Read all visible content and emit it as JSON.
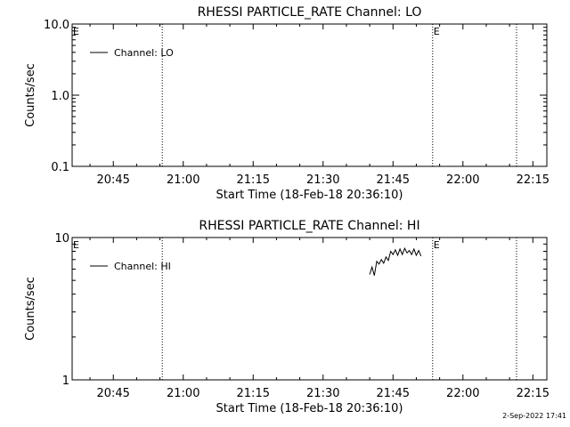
{
  "footer": {
    "timestamp": "2-Sep-2022 17:41"
  },
  "chart_data": [
    {
      "type": "line",
      "title": "RHESSI PARTICLE_RATE Channel: LO",
      "xlabel": "Start Time (18-Feb-18 20:36:10)",
      "ylabel": "Counts/sec",
      "yscale": "log",
      "ylim": [
        0.1,
        10.0
      ],
      "yticks": [
        {
          "v": 0.1,
          "label": "0.1"
        },
        {
          "v": 1.0,
          "label": "1.0"
        },
        {
          "v": 10.0,
          "label": "10.0"
        }
      ],
      "xlim": [
        "20:36:10",
        "22:18:00"
      ],
      "xticks": [
        "20:45",
        "21:00",
        "21:15",
        "21:30",
        "21:45",
        "22:00",
        "22:15"
      ],
      "vlines": [
        "20:55:30",
        "21:53:30",
        "22:11:30"
      ],
      "markers": [
        {
          "t": "20:36:10",
          "label": "E"
        },
        {
          "t": "21:53:30",
          "label": "E"
        }
      ],
      "legend_position": "top-left",
      "grid": false,
      "series": [
        {
          "name": "Channel: LO",
          "x": [],
          "values": []
        }
      ]
    },
    {
      "type": "line",
      "title": "RHESSI PARTICLE_RATE Channel: HI",
      "xlabel": "Start Time (18-Feb-18 20:36:10)",
      "ylabel": "Counts/sec",
      "yscale": "log",
      "ylim": [
        1,
        10
      ],
      "yticks": [
        {
          "v": 1,
          "label": "1"
        },
        {
          "v": 10,
          "label": "10"
        }
      ],
      "xlim": [
        "20:36:10",
        "22:18:00"
      ],
      "xticks": [
        "20:45",
        "21:00",
        "21:15",
        "21:30",
        "21:45",
        "22:00",
        "22:15"
      ],
      "vlines": [
        "20:55:30",
        "21:53:30",
        "22:11:30"
      ],
      "markers": [
        {
          "t": "20:36:10",
          "label": "E"
        },
        {
          "t": "21:53:30",
          "label": "E"
        }
      ],
      "legend_position": "top-left",
      "grid": false,
      "series": [
        {
          "name": "Channel: HI",
          "x": [
            "21:40:00",
            "21:40:30",
            "21:41:00",
            "21:41:30",
            "21:42:00",
            "21:42:30",
            "21:43:00",
            "21:43:30",
            "21:44:00",
            "21:44:30",
            "21:45:00",
            "21:45:30",
            "21:46:00",
            "21:46:30",
            "21:47:00",
            "21:47:30",
            "21:48:00",
            "21:48:30",
            "21:49:00",
            "21:49:30",
            "21:50:00",
            "21:50:30",
            "21:51:00"
          ],
          "values": [
            5.5,
            6.2,
            5.4,
            6.8,
            6.5,
            7.0,
            6.6,
            7.3,
            6.9,
            8.0,
            7.6,
            8.2,
            7.5,
            8.3,
            7.6,
            8.4,
            7.8,
            8.1,
            7.6,
            8.3,
            7.5,
            8.1,
            7.4
          ]
        }
      ]
    }
  ]
}
